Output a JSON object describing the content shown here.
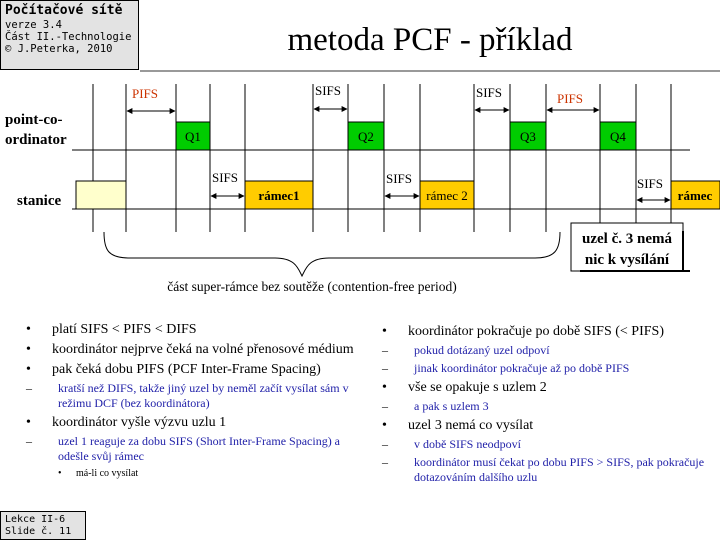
{
  "header": {
    "course_title": "Počítačové sítě",
    "version": "verze 3.4",
    "part": "Část II.-Technologie",
    "author": "© J.Peterka, 2010",
    "slide_title": "metoda PCF - příklad"
  },
  "diagram": {
    "row_labels": {
      "coordinator_line1": "point-co-",
      "coordinator_line2": "ordinator",
      "station": "stanice"
    },
    "frames": {
      "q1": "Q1",
      "q2": "Q2",
      "q3": "Q3",
      "q4": "Q4",
      "frame1": "rámec1",
      "frame2": "rámec 2",
      "frame3": "rámec"
    },
    "intervals": {
      "pifs_1": "PIFS",
      "sifs_1": "SIFS",
      "sifs_2": "SIFS",
      "sifs_3": "SIFS",
      "sifs_4": "SIFS",
      "pifs_2": "PIFS",
      "sifs_5": "SIFS"
    },
    "callout_line1": "uzel č. 3 nemá",
    "callout_line2": "nic k vysílání",
    "brace_label": "část super-rámce bez soutěže (contention-free period)",
    "colors": {
      "q_frame": "#00cc00",
      "data_frame": "#ffcc00",
      "pifs_text": "#cc3300",
      "idle_box": "#ffffcc"
    }
  },
  "bullets_left": {
    "b1": "platí SIFS < PIFS < DIFS",
    "b2": "koordinátor nejprve čeká na volné přenosové médium",
    "b3": "pak čeká dobu PIFS  (PCF Inter-Frame Spacing)",
    "b3_sub1": "kratší než DIFS, takže jiný uzel by neměl začít vysílat sám v režimu DCF (bez koordinátora)",
    "b4": "koordinátor vyšle výzvu uzlu  1",
    "b4_sub1": "uzel 1 reaguje za dobu SIFS (Short Inter-Frame Spacing) a odešle svůj rámec",
    "b4_sub1_sub1": "má-li co vysílat"
  },
  "bullets_right": {
    "b1": "koordinátor pokračuje po době SIFS (< PIFS)",
    "b1_sub1": "pokud dotázaný uzel odpoví",
    "b1_sub2": "jinak koordinátor pokračuje až po době PIFS",
    "b2": "vše se opakuje s uzlem 2",
    "b2_sub1": "a pak s uzlem 3",
    "b3": "uzel 3 nemá co vysílat",
    "b3_sub1": "v době SIFS neodpoví",
    "b3_sub2": "koordinátor musí čekat po dobu PIFS > SIFS, pak pokračuje dotazováním dalšího uzlu"
  },
  "footer": {
    "lecture": "Lekce II-6",
    "slide": "Slide č. 11"
  }
}
